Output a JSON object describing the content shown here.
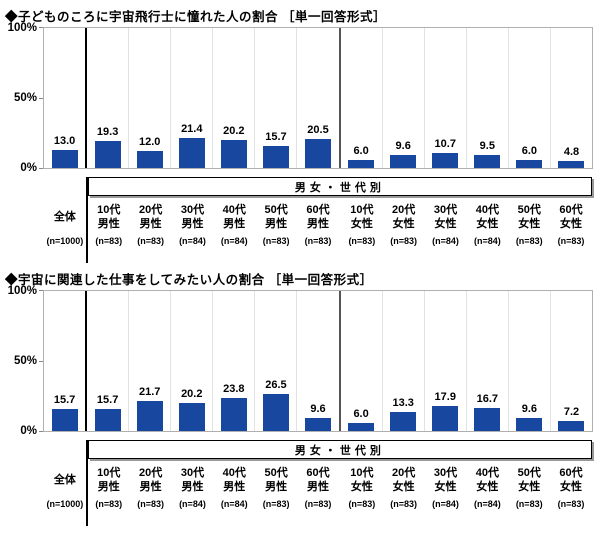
{
  "colors": {
    "bar": "#17479E",
    "separator_overall": "#000000",
    "separator_gender": "#555555",
    "gridline": "#e2e2e2",
    "frame": "#b0b0b0"
  },
  "axis_labels": {
    "top": "100%",
    "mid": "50%",
    "bottom": "0%"
  },
  "group_box_label": "男女・世代別",
  "charts": [
    {
      "title": "◆子どものころに宇宙飛行士に憧れた人の割合 ［単一回答形式］",
      "columns": [
        {
          "label": "全体",
          "n": "(n=1000)",
          "value": "13.0"
        },
        {
          "label": "10代\n男性",
          "n": "(n=83)",
          "value": "19.3"
        },
        {
          "label": "20代\n男性",
          "n": "(n=83)",
          "value": "12.0"
        },
        {
          "label": "30代\n男性",
          "n": "(n=84)",
          "value": "21.4"
        },
        {
          "label": "40代\n男性",
          "n": "(n=84)",
          "value": "20.2"
        },
        {
          "label": "50代\n男性",
          "n": "(n=83)",
          "value": "15.7"
        },
        {
          "label": "60代\n男性",
          "n": "(n=83)",
          "value": "20.5"
        },
        {
          "label": "10代\n女性",
          "n": "(n=83)",
          "value": "6.0"
        },
        {
          "label": "20代\n女性",
          "n": "(n=83)",
          "value": "9.6"
        },
        {
          "label": "30代\n女性",
          "n": "(n=84)",
          "value": "10.7"
        },
        {
          "label": "40代\n女性",
          "n": "(n=84)",
          "value": "9.5"
        },
        {
          "label": "50代\n女性",
          "n": "(n=83)",
          "value": "6.0"
        },
        {
          "label": "60代\n女性",
          "n": "(n=83)",
          "value": "4.8"
        }
      ]
    },
    {
      "title": "◆宇宙に関連した仕事をしてみたい人の割合 ［単一回答形式］",
      "columns": [
        {
          "label": "全体",
          "n": "(n=1000)",
          "value": "15.7"
        },
        {
          "label": "10代\n男性",
          "n": "(n=83)",
          "value": "15.7"
        },
        {
          "label": "20代\n男性",
          "n": "(n=83)",
          "value": "21.7"
        },
        {
          "label": "30代\n男性",
          "n": "(n=84)",
          "value": "20.2"
        },
        {
          "label": "40代\n男性",
          "n": "(n=84)",
          "value": "23.8"
        },
        {
          "label": "50代\n男性",
          "n": "(n=83)",
          "value": "26.5"
        },
        {
          "label": "60代\n男性",
          "n": "(n=83)",
          "value": "9.6"
        },
        {
          "label": "10代\n女性",
          "n": "(n=83)",
          "value": "6.0"
        },
        {
          "label": "20代\n女性",
          "n": "(n=83)",
          "value": "13.3"
        },
        {
          "label": "30代\n女性",
          "n": "(n=84)",
          "value": "17.9"
        },
        {
          "label": "40代\n女性",
          "n": "(n=84)",
          "value": "16.7"
        },
        {
          "label": "50代\n女性",
          "n": "(n=83)",
          "value": "9.6"
        },
        {
          "label": "60代\n女性",
          "n": "(n=83)",
          "value": "7.2"
        }
      ]
    }
  ],
  "chart_data": [
    {
      "type": "bar",
      "title": "子どものころに宇宙飛行士に憧れた人の割合（単一回答形式）",
      "categories": [
        "全体",
        "10代男性",
        "20代男性",
        "30代男性",
        "40代男性",
        "50代男性",
        "60代男性",
        "10代女性",
        "20代女性",
        "30代女性",
        "40代女性",
        "50代女性",
        "60代女性"
      ],
      "values": [
        13.0,
        19.3,
        12.0,
        21.4,
        20.2,
        15.7,
        20.5,
        6.0,
        9.6,
        10.7,
        9.5,
        6.0,
        4.8
      ],
      "sample_sizes": [
        1000,
        83,
        83,
        84,
        84,
        83,
        83,
        83,
        83,
        84,
        84,
        83,
        83
      ],
      "group_annotation": "男女・世代別",
      "xlabel": "",
      "ylabel": "%",
      "ylim": [
        0,
        100
      ],
      "yticks": [
        "0%",
        "50%",
        "100%"
      ],
      "grid": false,
      "legend": "none",
      "bar_color": "#17479E"
    },
    {
      "type": "bar",
      "title": "宇宙に関連した仕事をしてみたい人の割合（単一回答形式）",
      "categories": [
        "全体",
        "10代男性",
        "20代男性",
        "30代男性",
        "40代男性",
        "50代男性",
        "60代男性",
        "10代女性",
        "20代女性",
        "30代女性",
        "40代女性",
        "50代女性",
        "60代女性"
      ],
      "values": [
        15.7,
        15.7,
        21.7,
        20.2,
        23.8,
        26.5,
        9.6,
        6.0,
        13.3,
        17.9,
        16.7,
        9.6,
        7.2
      ],
      "sample_sizes": [
        1000,
        83,
        83,
        84,
        84,
        83,
        83,
        83,
        83,
        84,
        84,
        83,
        83
      ],
      "group_annotation": "男女・世代別",
      "xlabel": "",
      "ylabel": "%",
      "ylim": [
        0,
        100
      ],
      "yticks": [
        "0%",
        "50%",
        "100%"
      ],
      "grid": false,
      "legend": "none",
      "bar_color": "#17479E"
    }
  ]
}
